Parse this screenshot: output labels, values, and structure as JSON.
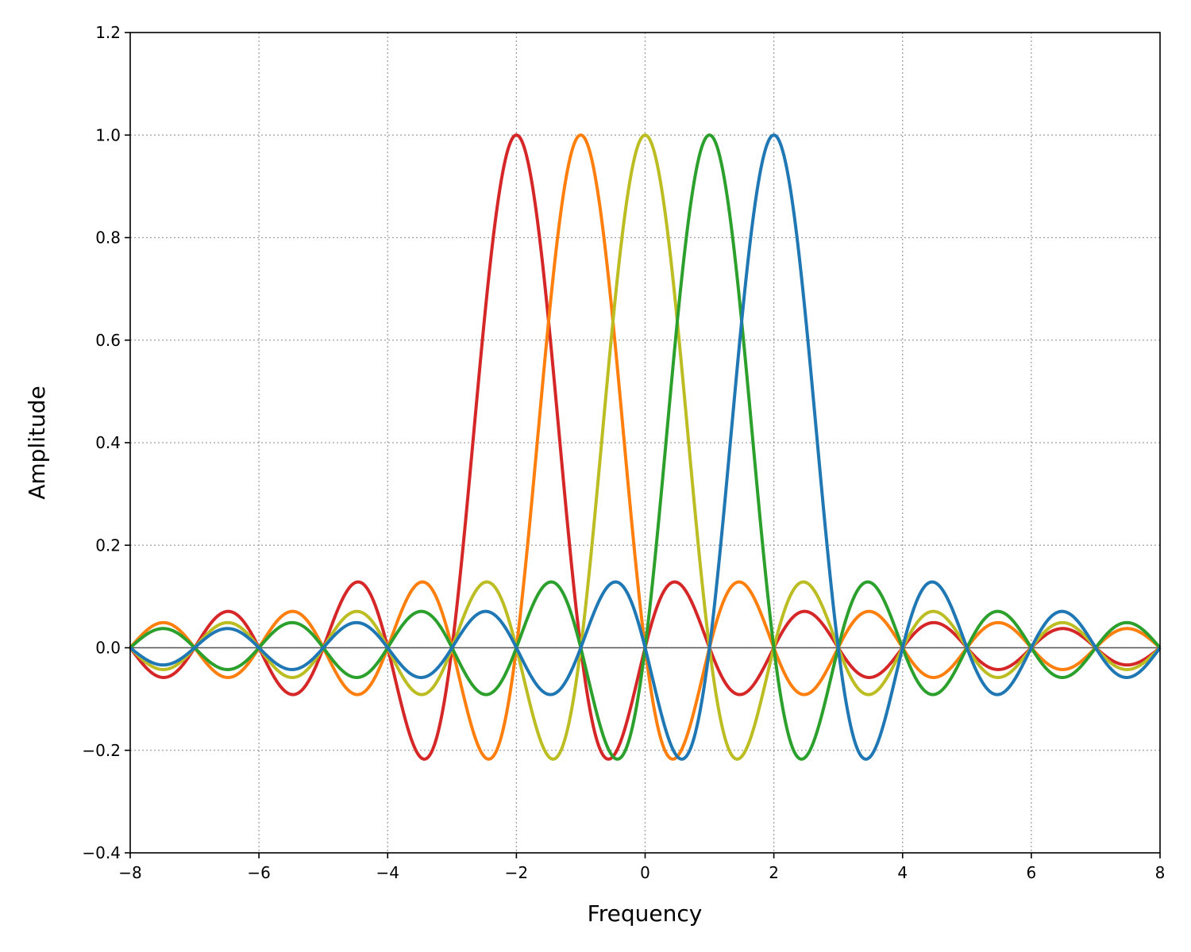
{
  "chart_data": {
    "type": "line",
    "title": "",
    "xlabel": "Frequency",
    "ylabel": "Amplitude",
    "xlim": [
      -8,
      8
    ],
    "ylim": [
      -0.4,
      1.2
    ],
    "xticks": [
      -8,
      -6,
      -4,
      -2,
      0,
      2,
      4,
      6,
      8
    ],
    "xtick_labels": [
      "−8",
      "−6",
      "−4",
      "−2",
      "0",
      "2",
      "4",
      "6",
      "8"
    ],
    "yticks": [
      -0.4,
      -0.2,
      0.0,
      0.2,
      0.4,
      0.6,
      0.8,
      1.0,
      1.2
    ],
    "ytick_labels": [
      "−0.4",
      "−0.2",
      "0.0",
      "0.2",
      "0.4",
      "0.6",
      "0.8",
      "1.0",
      "1.2"
    ],
    "grid": true,
    "zero_line": true,
    "curve_function": "sinc",
    "curve_x_range": [
      -8,
      8
    ],
    "series": [
      {
        "center": -2,
        "peak": 1.0,
        "color": "#d62728"
      },
      {
        "center": -1,
        "peak": 1.0,
        "color": "#ff7f0e"
      },
      {
        "center": 0,
        "peak": 1.0,
        "color": "#bcbd22"
      },
      {
        "center": 1,
        "peak": 1.0,
        "color": "#2ca02c"
      },
      {
        "center": 2,
        "peak": 1.0,
        "color": "#1f77b4"
      }
    ]
  }
}
